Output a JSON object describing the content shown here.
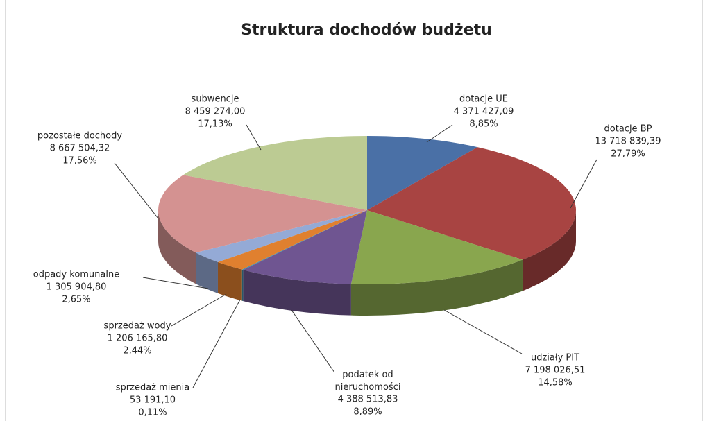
{
  "chart_data": {
    "type": "pie3d",
    "title": "Struktura dochodów budżetu",
    "categories": [
      "dotacje UE",
      "dotacje BP",
      "udziały PIT",
      "podatek od\nnieruchomości",
      "sprzedaż mienia",
      "sprzedaż wody",
      "odpady komunalne",
      "pozostałe dochody",
      "subwencje"
    ],
    "values": [
      4371427.09,
      13718839.39,
      7198026.51,
      4388513.83,
      53191.1,
      1206165.8,
      1305904.8,
      8667504.32,
      8459274.0
    ],
    "value_labels": [
      "4 371 427,09",
      "13 718 839,39",
      "7 198 026,51",
      "4 388 513,83",
      "53 191,10",
      "1 206 165,80",
      "1 305 904,80",
      "8 667 504,32",
      "8 459 274,00"
    ],
    "shares": [
      8.85,
      27.79,
      14.58,
      8.89,
      0.11,
      2.44,
      2.65,
      17.56,
      17.13
    ],
    "share_labels": [
      "8,85%",
      "27,79%",
      "14,58%",
      "8,89%",
      "0,11%",
      "2,44%",
      "2,65%",
      "17,56%",
      "17,13%"
    ],
    "colors": [
      "#4a70a6",
      "#a84442",
      "#89a64e",
      "#6f5591",
      "#3f91a9",
      "#e0802f",
      "#94aad6",
      "#d49291",
      "#bccb93"
    ]
  }
}
